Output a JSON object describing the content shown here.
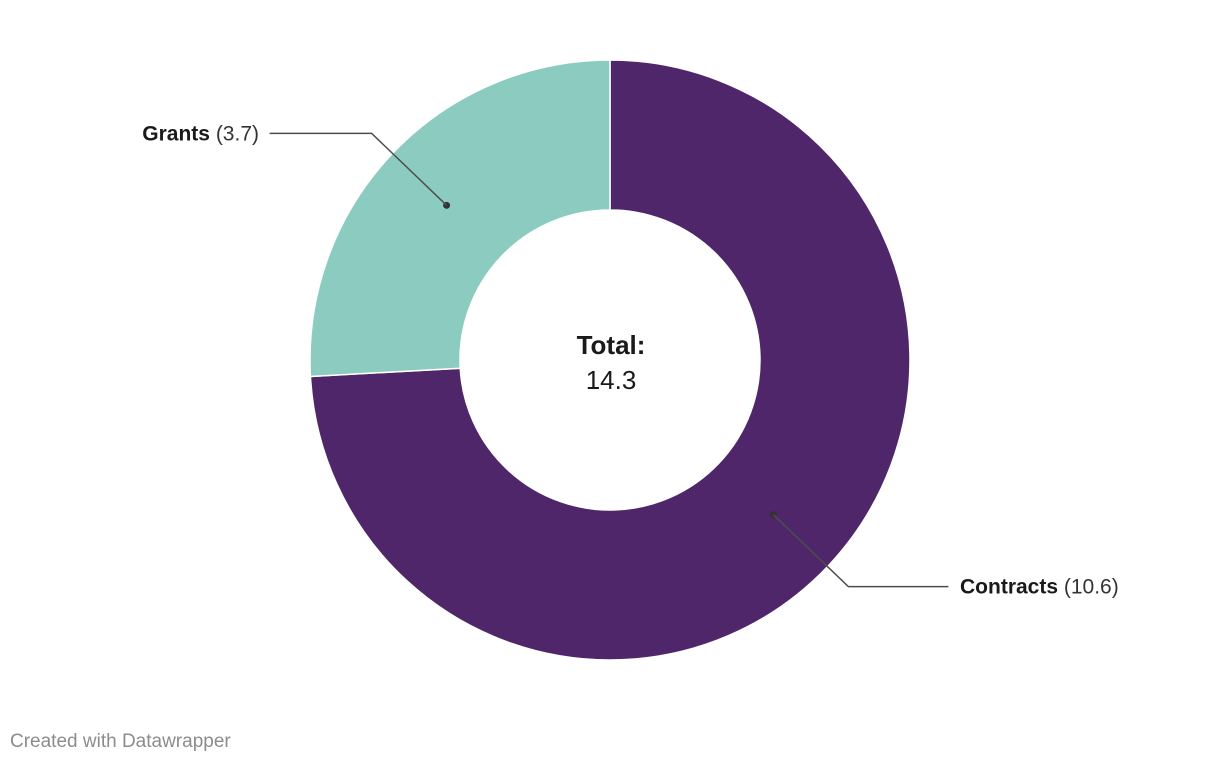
{
  "chart_data": {
    "type": "pie",
    "variant": "donut",
    "slices": [
      {
        "label": "Contracts",
        "value": 10.6,
        "value_label": "(10.6)",
        "color": "#4f2669"
      },
      {
        "label": "Grants",
        "value": 3.7,
        "value_label": "(3.7)",
        "color": "#8ccbc0"
      }
    ],
    "center": {
      "heading": "Total:",
      "value": "14.3"
    }
  },
  "footer": {
    "credit": "Created with Datawrapper"
  }
}
